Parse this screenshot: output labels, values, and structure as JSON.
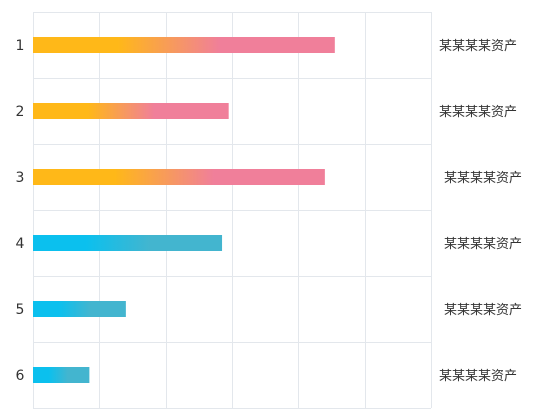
{
  "chart_data": {
    "type": "bar",
    "orientation": "horizontal",
    "categories": [
      "1",
      "2",
      "3",
      "4",
      "5",
      "6"
    ],
    "values": [
      91,
      59,
      88,
      57,
      28,
      17
    ],
    "right_labels": [
      "某某某某资产",
      "某某某某资产",
      "某某某某资产",
      "某某某某资产",
      "某某某某资产",
      "某某某某资产"
    ],
    "bar_gradients": [
      [
        "#ffb818",
        "#f07f9a"
      ],
      [
        "#ffb818",
        "#f07f9a"
      ],
      [
        "#ffb818",
        "#f07f9a"
      ],
      [
        "#0bc0ee",
        "#43b5cf"
      ],
      [
        "#0bc0ee",
        "#43b5cf"
      ],
      [
        "#0bc0ee",
        "#43b5cf"
      ]
    ],
    "xlim": [
      0,
      120
    ],
    "x_grid_step": 20,
    "grid": true,
    "title": "",
    "xlabel": "",
    "ylabel": ""
  }
}
